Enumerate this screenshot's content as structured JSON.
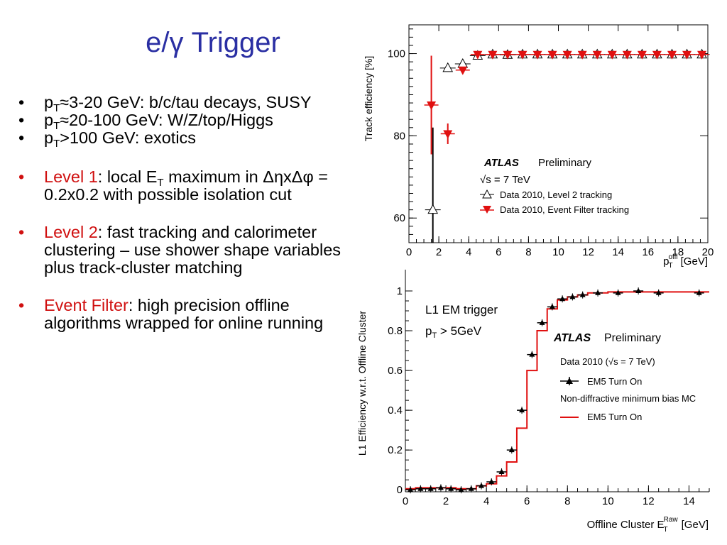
{
  "slide": {
    "title": "e/γ Trigger",
    "bullets": [
      {
        "pre": "p",
        "sub": "T",
        "text": "≈3-20 GeV: b/c/tau decays, SUSY"
      },
      {
        "pre": "p",
        "sub": "T",
        "text": "≈20-100 GeV: W/Z/top/Higgs"
      },
      {
        "pre": "p",
        "sub": "T",
        "text": ">100 GeV: exotics"
      },
      {
        "highlight": "Level 1",
        "text1": ": local E",
        "sub": "T",
        "text2": " maximum in ΔηxΔφ = 0.2x0.2 with possible isolation cut"
      },
      {
        "highlight": "Level 2",
        "text": ": fast tracking and calorimeter clustering – use shower shape variables plus track-cluster matching"
      },
      {
        "highlight": "Event Filter",
        "text": ": high precision offline algorithms wrapped for online running"
      }
    ],
    "bullet_symbol": "•",
    "colors": {
      "title": "#2a2fa3",
      "highlight": "#d01010",
      "mc_line": "#e01010",
      "ef_marker": "#e01010"
    }
  },
  "chart_data": [
    {
      "type": "scatter",
      "ylabel": "Track efficiency [%]",
      "xlabel_main": "p",
      "xlabel_sup": "offl",
      "xlabel_sub": "T",
      "xlabel_unit": "[GeV]",
      "xlim": [
        0,
        20
      ],
      "ylim": [
        54,
        107
      ],
      "xticks": [
        0,
        2,
        4,
        6,
        8,
        10,
        12,
        14,
        16,
        18,
        20
      ],
      "yticks": [
        60,
        80,
        100
      ],
      "grid": false,
      "legend_position": "bottom-right",
      "annotations": {
        "experiment": "ATLAS",
        "status": "Preliminary",
        "energy": "√s = 7 TeV"
      },
      "series": [
        {
          "name": "Data 2010, Level 2 tracking",
          "marker": "open-triangle-up",
          "points": [
            {
              "x": 1.6,
              "y": 62,
              "err": 20
            },
            {
              "x": 2.6,
              "y": 96.5
            },
            {
              "x": 3.6,
              "y": 97.5
            },
            {
              "x": 4.6,
              "y": 99.5
            },
            {
              "x": 5.6,
              "y": 99.8
            },
            {
              "x": 6.6,
              "y": 99.7
            },
            {
              "x": 7.6,
              "y": 99.8
            },
            {
              "x": 8.6,
              "y": 99.8
            },
            {
              "x": 9.6,
              "y": 99.8
            },
            {
              "x": 10.6,
              "y": 99.8
            },
            {
              "x": 11.6,
              "y": 99.8
            },
            {
              "x": 12.6,
              "y": 99.8
            },
            {
              "x": 13.6,
              "y": 99.8
            },
            {
              "x": 14.6,
              "y": 99.8
            },
            {
              "x": 15.6,
              "y": 99.8
            },
            {
              "x": 16.6,
              "y": 99.8
            },
            {
              "x": 17.6,
              "y": 99.8
            },
            {
              "x": 18.6,
              "y": 99.8
            },
            {
              "x": 19.6,
              "y": 99.8
            }
          ]
        },
        {
          "name": "Data 2010, Event Filter tracking",
          "marker": "filled-triangle-down",
          "points": [
            {
              "x": 1.5,
              "y": 87.5,
              "err": 12
            },
            {
              "x": 2.6,
              "y": 80.5,
              "err": 2.5
            },
            {
              "x": 3.6,
              "y": 96
            },
            {
              "x": 4.6,
              "y": 99.8
            },
            {
              "x": 5.6,
              "y": 99.8
            },
            {
              "x": 6.6,
              "y": 99.8
            },
            {
              "x": 7.6,
              "y": 99.8
            },
            {
              "x": 8.6,
              "y": 99.8
            },
            {
              "x": 9.6,
              "y": 99.8
            },
            {
              "x": 10.6,
              "y": 99.8
            },
            {
              "x": 11.6,
              "y": 99.8
            },
            {
              "x": 12.6,
              "y": 99.8
            },
            {
              "x": 13.6,
              "y": 99.8
            },
            {
              "x": 14.6,
              "y": 99.8
            },
            {
              "x": 15.6,
              "y": 99.8
            },
            {
              "x": 16.6,
              "y": 99.8
            },
            {
              "x": 17.6,
              "y": 99.8
            },
            {
              "x": 18.6,
              "y": 99.8
            },
            {
              "x": 19.6,
              "y": 99.8
            }
          ]
        }
      ]
    },
    {
      "type": "scatter",
      "ylabel": "L1 Efficiency w.r.t. Offline Cluster",
      "xlabel_main": "Offline Cluster E",
      "xlabel_sup": "Raw",
      "xlabel_sub": "T",
      "xlabel_unit": "[GeV]",
      "xlim": [
        0,
        15
      ],
      "ylim": [
        -0.01,
        1.05
      ],
      "xticks": [
        0,
        2,
        4,
        6,
        8,
        10,
        12,
        14
      ],
      "yticks": [
        0,
        0.2,
        0.4,
        0.6,
        0.8,
        1
      ],
      "grid": false,
      "legend_position": "middle-right",
      "annotations": {
        "trigger_label": "L1 EM trigger",
        "cut_main": "p",
        "cut_sub": "T",
        "cut_rest": " > 5GeV",
        "experiment": "ATLAS",
        "status": "Preliminary",
        "data_label": "Data 2010 (√s = 7 TeV)",
        "mc_label": "Non-diffractive minimum bias MC"
      },
      "series": [
        {
          "name": "EM5 Turn On",
          "source": "data",
          "marker": "filled-triangle-up",
          "points": [
            {
              "x": 0.25,
              "y": 0.0
            },
            {
              "x": 0.75,
              "y": 0.005
            },
            {
              "x": 1.25,
              "y": 0.005
            },
            {
              "x": 1.75,
              "y": 0.01
            },
            {
              "x": 2.25,
              "y": 0.005
            },
            {
              "x": 2.75,
              "y": 0.0
            },
            {
              "x": 3.25,
              "y": 0.005
            },
            {
              "x": 3.75,
              "y": 0.02
            },
            {
              "x": 4.25,
              "y": 0.04
            },
            {
              "x": 4.75,
              "y": 0.09
            },
            {
              "x": 5.25,
              "y": 0.2
            },
            {
              "x": 5.75,
              "y": 0.4
            },
            {
              "x": 6.25,
              "y": 0.68
            },
            {
              "x": 6.75,
              "y": 0.84
            },
            {
              "x": 7.25,
              "y": 0.92
            },
            {
              "x": 7.75,
              "y": 0.96
            },
            {
              "x": 8.25,
              "y": 0.97
            },
            {
              "x": 8.75,
              "y": 0.98
            },
            {
              "x": 9.5,
              "y": 0.99
            },
            {
              "x": 10.5,
              "y": 0.99
            },
            {
              "x": 11.5,
              "y": 1.0
            },
            {
              "x": 12.5,
              "y": 0.99
            },
            {
              "x": 14.5,
              "y": 0.99
            }
          ]
        },
        {
          "name": "EM5 Turn On",
          "source": "mc",
          "style": "step-line",
          "edges": [
            0,
            0.5,
            1.0,
            1.5,
            2.0,
            2.5,
            3.0,
            3.5,
            4.0,
            4.5,
            5.0,
            5.5,
            6.0,
            6.5,
            7.0,
            7.5,
            8.0,
            8.5,
            9.0,
            10.0,
            11.0,
            12.0,
            13.0,
            14.0,
            15.0
          ],
          "values": [
            0.005,
            0.01,
            0.01,
            0.01,
            0.01,
            0.005,
            0.005,
            0.02,
            0.03,
            0.07,
            0.14,
            0.31,
            0.6,
            0.8,
            0.91,
            0.955,
            0.97,
            0.98,
            0.99,
            0.995,
            0.995,
            0.995,
            0.995,
            0.995
          ]
        }
      ]
    }
  ]
}
